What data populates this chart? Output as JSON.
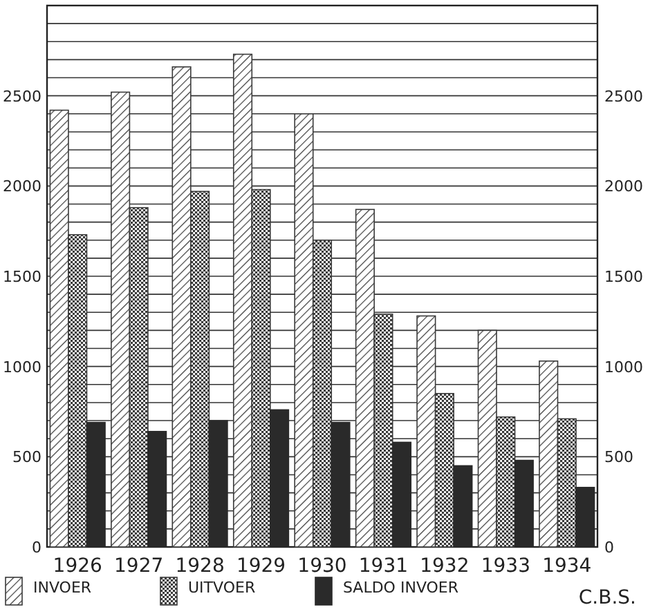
{
  "chart_data": {
    "type": "bar",
    "categories": [
      "1926",
      "1927",
      "1928",
      "1929",
      "1930",
      "1931",
      "1932",
      "1933",
      "1934"
    ],
    "series": [
      {
        "name": "INVOER",
        "color": "#3a3a3a",
        "values": [
          2420,
          2520,
          2660,
          2730,
          2400,
          1870,
          1280,
          1200,
          1030
        ]
      },
      {
        "name": "UITVOER",
        "color": "#3a3a3a",
        "values": [
          1730,
          1880,
          1970,
          1980,
          1700,
          1290,
          850,
          720,
          710
        ]
      },
      {
        "name": "SALDO INVOER",
        "color": "#2a2a2a",
        "values": [
          690,
          640,
          700,
          760,
          690,
          580,
          450,
          480,
          330
        ]
      }
    ],
    "ylim": [
      0,
      3000
    ],
    "yticks": [
      0,
      {
        "value": 100,
        "label": null
      },
      {
        "value": 200,
        "label": null
      },
      {
        "value": 300,
        "label": null
      },
      {
        "value": 400,
        "label": null
      },
      500,
      {
        "value": 600,
        "label": null
      },
      {
        "value": 700,
        "label": null
      },
      {
        "value": 800,
        "label": null
      },
      {
        "value": 900,
        "label": null
      },
      1000,
      {
        "value": 1100,
        "label": null
      },
      {
        "value": 1200,
        "label": null
      },
      {
        "value": 1300,
        "label": null
      },
      {
        "value": 1400,
        "label": null
      },
      1500,
      {
        "value": 1600,
        "label": null
      },
      {
        "value": 1700,
        "label": null
      },
      {
        "value": 1800,
        "label": null
      },
      {
        "value": 1900,
        "label": null
      },
      2000,
      {
        "value": 2100,
        "label": null
      },
      {
        "value": 2200,
        "label": null
      },
      {
        "value": 2300,
        "label": null
      },
      {
        "value": 2400,
        "label": null
      },
      2500,
      {
        "value": 2600,
        "label": null
      },
      {
        "value": 2700,
        "label": null
      },
      {
        "value": 2800,
        "label": null
      },
      {
        "value": 2900,
        "label": null
      }
    ],
    "y2lim": [
      0,
      3000
    ],
    "y2ticks": [
      0,
      500,
      1000,
      1500,
      2000,
      2500
    ],
    "grid": "y",
    "legend": "bottom",
    "annotations": [
      "C.B.S."
    ]
  }
}
